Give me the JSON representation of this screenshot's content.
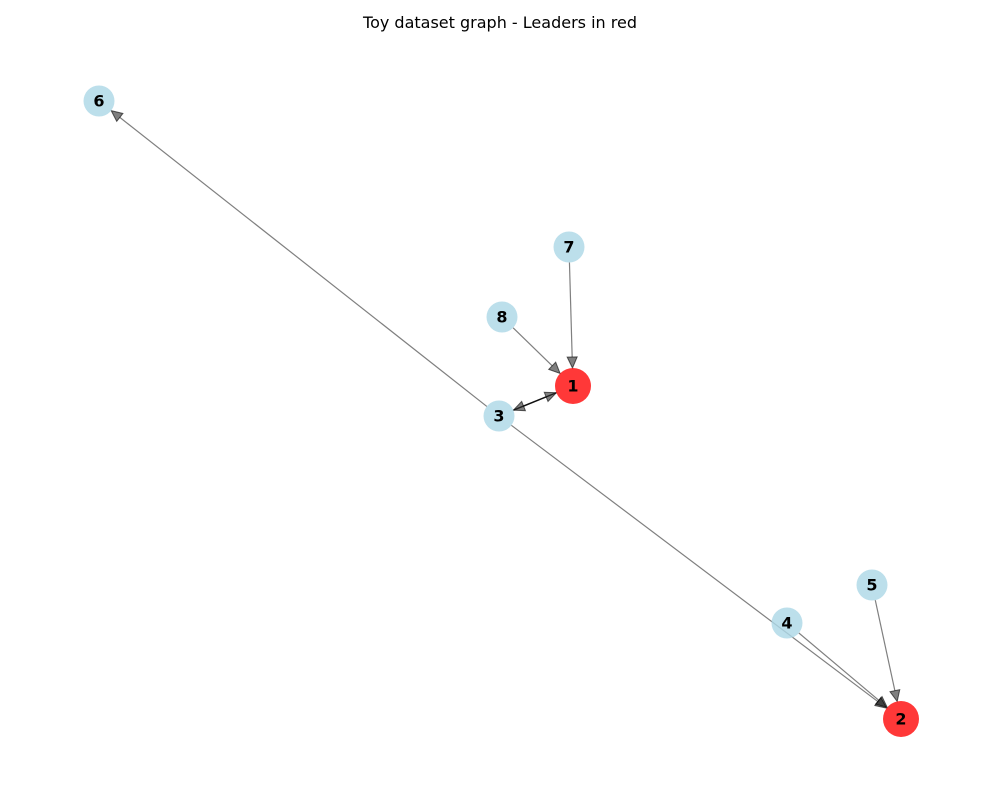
{
  "title": "Toy dataset graph - Leaders in red",
  "colors": {
    "leader": "#ff0000",
    "member": "#add8e6",
    "edge": "#000000"
  },
  "nodes": [
    {
      "id": "1",
      "label": "1",
      "leader": true
    },
    {
      "id": "2",
      "label": "2",
      "leader": true
    },
    {
      "id": "3",
      "label": "3",
      "leader": false
    },
    {
      "id": "4",
      "label": "4",
      "leader": false
    },
    {
      "id": "5",
      "label": "5",
      "leader": false
    },
    {
      "id": "6",
      "label": "6",
      "leader": false
    },
    {
      "id": "7",
      "label": "7",
      "leader": false
    },
    {
      "id": "8",
      "label": "8",
      "leader": false
    }
  ],
  "edges": [
    {
      "source": "3",
      "target": "6"
    },
    {
      "source": "3",
      "target": "2"
    },
    {
      "source": "4",
      "target": "2"
    },
    {
      "source": "5",
      "target": "2"
    },
    {
      "source": "7",
      "target": "1"
    },
    {
      "source": "8",
      "target": "1"
    },
    {
      "source": "3",
      "target": "1"
    },
    {
      "source": "1",
      "target": "3"
    }
  ]
}
